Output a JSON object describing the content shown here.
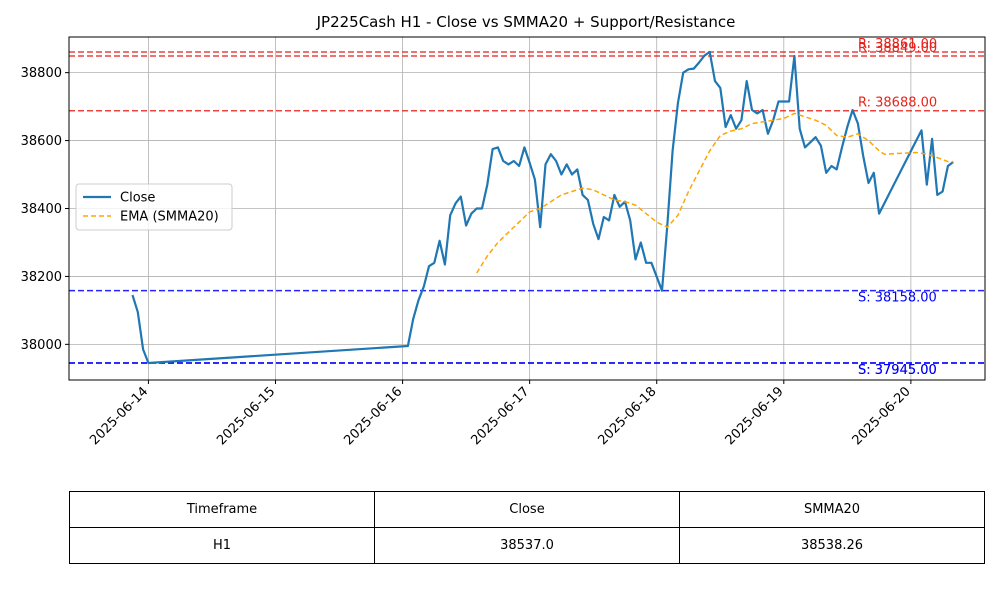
{
  "chart_data": {
    "type": "line",
    "title": "JP225Cash H1 - Close vs SMMA20 + Support/Resistance",
    "xlabel": "",
    "ylabel": "",
    "x_ticks": [
      "2025-06-14",
      "2025-06-15",
      "2025-06-16",
      "2025-06-17",
      "2025-06-18",
      "2025-06-19",
      "2025-06-20"
    ],
    "y_ticks": [
      38000,
      38200,
      38400,
      38600,
      38800
    ],
    "xlim": [
      "2025-06-13 09:00",
      "2025-06-20 14:00"
    ],
    "ylim": [
      37895,
      38905
    ],
    "grid": true,
    "legend_position": "center-left",
    "series": [
      {
        "name": "Close",
        "color": "#1f77b4",
        "style": "solid",
        "points": [
          [
            "2025-06-13 21:00",
            38145
          ],
          [
            "2025-06-13 22:00",
            38095
          ],
          [
            "2025-06-13 23:00",
            37985
          ],
          [
            "2025-06-14 00:00",
            37945
          ],
          [
            "2025-06-16 01:00",
            37995
          ],
          [
            "2025-06-16 02:00",
            38075
          ],
          [
            "2025-06-16 03:00",
            38130
          ],
          [
            "2025-06-16 04:00",
            38170
          ],
          [
            "2025-06-16 05:00",
            38230
          ],
          [
            "2025-06-16 06:00",
            38240
          ],
          [
            "2025-06-16 07:00",
            38305
          ],
          [
            "2025-06-16 08:00",
            38235
          ],
          [
            "2025-06-16 09:00",
            38380
          ],
          [
            "2025-06-16 10:00",
            38415
          ],
          [
            "2025-06-16 11:00",
            38435
          ],
          [
            "2025-06-16 12:00",
            38350
          ],
          [
            "2025-06-16 13:00",
            38385
          ],
          [
            "2025-06-16 14:00",
            38400
          ],
          [
            "2025-06-16 15:00",
            38400
          ],
          [
            "2025-06-16 16:00",
            38470
          ],
          [
            "2025-06-16 17:00",
            38575
          ],
          [
            "2025-06-16 18:00",
            38580
          ],
          [
            "2025-06-16 19:00",
            38540
          ],
          [
            "2025-06-16 20:00",
            38530
          ],
          [
            "2025-06-16 21:00",
            38540
          ],
          [
            "2025-06-16 22:00",
            38525
          ],
          [
            "2025-06-16 23:00",
            38580
          ],
          [
            "2025-06-17 00:00",
            38535
          ],
          [
            "2025-06-17 01:00",
            38485
          ],
          [
            "2025-06-17 02:00",
            38345
          ],
          [
            "2025-06-17 03:00",
            38530
          ],
          [
            "2025-06-17 04:00",
            38560
          ],
          [
            "2025-06-17 05:00",
            38540
          ],
          [
            "2025-06-17 06:00",
            38500
          ],
          [
            "2025-06-17 07:00",
            38530
          ],
          [
            "2025-06-17 08:00",
            38500
          ],
          [
            "2025-06-17 09:00",
            38515
          ],
          [
            "2025-06-17 10:00",
            38440
          ],
          [
            "2025-06-17 11:00",
            38425
          ],
          [
            "2025-06-17 12:00",
            38355
          ],
          [
            "2025-06-17 13:00",
            38310
          ],
          [
            "2025-06-17 14:00",
            38375
          ],
          [
            "2025-06-17 15:00",
            38365
          ],
          [
            "2025-06-17 16:00",
            38440
          ],
          [
            "2025-06-17 17:00",
            38405
          ],
          [
            "2025-06-17 18:00",
            38420
          ],
          [
            "2025-06-17 19:00",
            38365
          ],
          [
            "2025-06-17 20:00",
            38250
          ],
          [
            "2025-06-17 21:00",
            38300
          ],
          [
            "2025-06-17 22:00",
            38240
          ],
          [
            "2025-06-17 23:00",
            38240
          ],
          [
            "2025-06-18 01:00",
            38158
          ],
          [
            "2025-06-18 02:00",
            38350
          ],
          [
            "2025-06-18 03:00",
            38570
          ],
          [
            "2025-06-18 04:00",
            38710
          ],
          [
            "2025-06-18 05:00",
            38800
          ],
          [
            "2025-06-18 06:00",
            38810
          ],
          [
            "2025-06-18 07:00",
            38812
          ],
          [
            "2025-06-18 08:00",
            38830
          ],
          [
            "2025-06-18 09:00",
            38850
          ],
          [
            "2025-06-18 10:00",
            38861
          ],
          [
            "2025-06-18 11:00",
            38775
          ],
          [
            "2025-06-18 12:00",
            38755
          ],
          [
            "2025-06-18 13:00",
            38640
          ],
          [
            "2025-06-18 14:00",
            38675
          ],
          [
            "2025-06-18 15:00",
            38635
          ],
          [
            "2025-06-18 16:00",
            38660
          ],
          [
            "2025-06-18 17:00",
            38775
          ],
          [
            "2025-06-18 18:00",
            38690
          ],
          [
            "2025-06-18 19:00",
            38680
          ],
          [
            "2025-06-18 20:00",
            38690
          ],
          [
            "2025-06-18 21:00",
            38620
          ],
          [
            "2025-06-18 22:00",
            38660
          ],
          [
            "2025-06-18 23:00",
            38715
          ],
          [
            "2025-06-19 00:00",
            38715
          ],
          [
            "2025-06-19 01:00",
            38715
          ],
          [
            "2025-06-19 02:00",
            38849
          ],
          [
            "2025-06-19 03:00",
            38635
          ],
          [
            "2025-06-19 04:00",
            38580
          ],
          [
            "2025-06-19 05:00",
            38595
          ],
          [
            "2025-06-19 06:00",
            38610
          ],
          [
            "2025-06-19 07:00",
            38585
          ],
          [
            "2025-06-19 08:00",
            38505
          ],
          [
            "2025-06-19 09:00",
            38525
          ],
          [
            "2025-06-19 10:00",
            38515
          ],
          [
            "2025-06-19 11:00",
            38580
          ],
          [
            "2025-06-19 12:00",
            38640
          ],
          [
            "2025-06-19 13:00",
            38690
          ],
          [
            "2025-06-19 14:00",
            38650
          ],
          [
            "2025-06-19 15:00",
            38555
          ],
          [
            "2025-06-19 16:00",
            38475
          ],
          [
            "2025-06-19 17:00",
            38505
          ],
          [
            "2025-06-19 18:00",
            38385
          ],
          [
            "2025-06-20 01:00",
            38600
          ],
          [
            "2025-06-20 02:00",
            38630
          ],
          [
            "2025-06-20 03:00",
            38470
          ],
          [
            "2025-06-20 04:00",
            38605
          ],
          [
            "2025-06-20 05:00",
            38440
          ],
          [
            "2025-06-20 06:00",
            38450
          ],
          [
            "2025-06-20 07:00",
            38525
          ],
          [
            "2025-06-20 08:00",
            38537
          ]
        ]
      },
      {
        "name": "EMA (SMMA20)",
        "color": "#ffa500",
        "style": "dashed",
        "points": [
          [
            "2025-06-16 14:00",
            38210
          ],
          [
            "2025-06-16 16:00",
            38260
          ],
          [
            "2025-06-16 18:00",
            38300
          ],
          [
            "2025-06-16 20:00",
            38330
          ],
          [
            "2025-06-16 22:00",
            38360
          ],
          [
            "2025-06-17 00:00",
            38390
          ],
          [
            "2025-06-17 02:00",
            38400
          ],
          [
            "2025-06-17 04:00",
            38420
          ],
          [
            "2025-06-17 06:00",
            38440
          ],
          [
            "2025-06-17 08:00",
            38450
          ],
          [
            "2025-06-17 10:00",
            38460
          ],
          [
            "2025-06-17 12:00",
            38455
          ],
          [
            "2025-06-17 14:00",
            38440
          ],
          [
            "2025-06-17 16:00",
            38425
          ],
          [
            "2025-06-17 18:00",
            38420
          ],
          [
            "2025-06-17 20:00",
            38410
          ],
          [
            "2025-06-17 22:00",
            38385
          ],
          [
            "2025-06-18 00:00",
            38360
          ],
          [
            "2025-06-18 02:00",
            38345
          ],
          [
            "2025-06-18 04:00",
            38380
          ],
          [
            "2025-06-18 06:00",
            38450
          ],
          [
            "2025-06-18 08:00",
            38510
          ],
          [
            "2025-06-18 10:00",
            38570
          ],
          [
            "2025-06-18 12:00",
            38615
          ],
          [
            "2025-06-18 14:00",
            38628
          ],
          [
            "2025-06-18 16:00",
            38635
          ],
          [
            "2025-06-18 18:00",
            38650
          ],
          [
            "2025-06-18 20:00",
            38655
          ],
          [
            "2025-06-18 22:00",
            38660
          ],
          [
            "2025-06-19 00:00",
            38665
          ],
          [
            "2025-06-19 02:00",
            38680
          ],
          [
            "2025-06-19 04:00",
            38670
          ],
          [
            "2025-06-19 06:00",
            38660
          ],
          [
            "2025-06-19 08:00",
            38645
          ],
          [
            "2025-06-19 10:00",
            38615
          ],
          [
            "2025-06-19 12:00",
            38610
          ],
          [
            "2025-06-19 14:00",
            38620
          ],
          [
            "2025-06-19 16:00",
            38600
          ],
          [
            "2025-06-19 18:00",
            38570
          ],
          [
            "2025-06-19 19:00",
            38560
          ],
          [
            "2025-06-20 01:00",
            38565
          ],
          [
            "2025-06-20 03:00",
            38560
          ],
          [
            "2025-06-20 05:00",
            38550
          ],
          [
            "2025-06-20 07:00",
            38538
          ],
          [
            "2025-06-20 08:00",
            38538
          ]
        ]
      }
    ],
    "levels": [
      {
        "kind": "resistance",
        "value": 38861.0,
        "label": "R: 38861.00",
        "color": "#e8231c"
      },
      {
        "kind": "resistance",
        "value": 38849.0,
        "label": "R: 38849.00",
        "color": "#e8231c"
      },
      {
        "kind": "resistance",
        "value": 38688.0,
        "label": "R: 38688.00",
        "color": "#e8231c"
      },
      {
        "kind": "support",
        "value": 38158.0,
        "label": "S: 38158.00",
        "color": "#0000ff"
      },
      {
        "kind": "support",
        "value": 37945.0,
        "label": "S: 37945.00",
        "color": "#0000ff"
      },
      {
        "kind": "support",
        "value": 37945.0,
        "label": "S: 37945.00",
        "color": "#0000ff"
      }
    ]
  },
  "table": {
    "headers": [
      "Timeframe",
      "Close",
      "SMMA20"
    ],
    "rows": [
      [
        "H1",
        "38537.0",
        "38538.26"
      ]
    ]
  }
}
